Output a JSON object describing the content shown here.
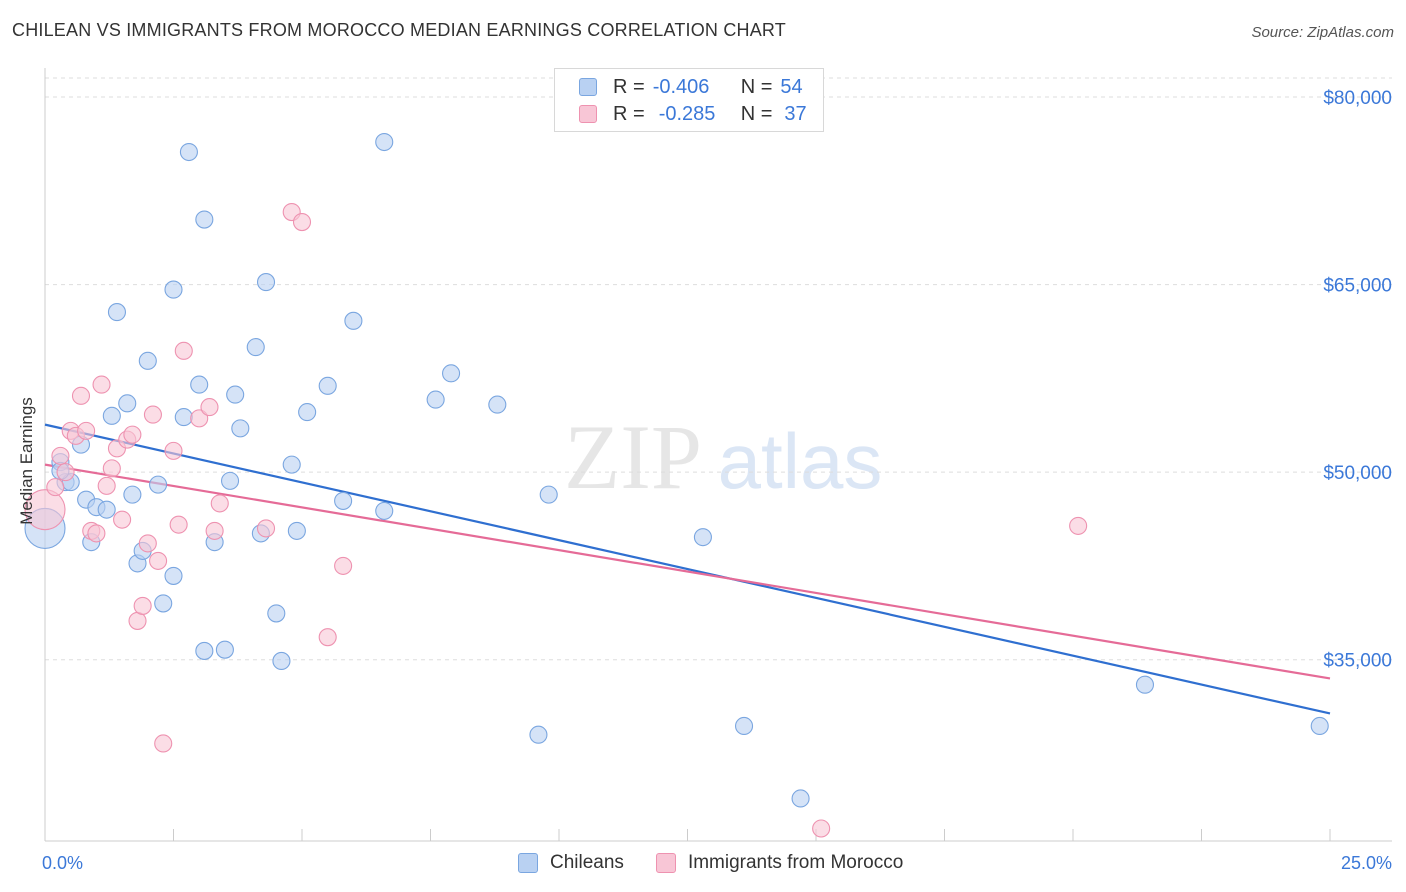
{
  "header": {
    "title": "CHILEAN VS IMMIGRANTS FROM MOROCCO MEDIAN EARNINGS CORRELATION CHART",
    "source": "Source: ZipAtlas.com"
  },
  "watermark": {
    "zip": "ZIP",
    "atlas": "atlas"
  },
  "legend": {
    "rows": [
      {
        "r_label": "R =",
        "r_value": "-0.406",
        "n_label": "N =",
        "n_value": "54"
      },
      {
        "r_label": "R =",
        "r_value": "-0.285",
        "n_label": "N =",
        "n_value": "37"
      }
    ]
  },
  "bottom_legend": {
    "items": [
      {
        "label": "Chileans"
      },
      {
        "label": "Immigrants from Morocco"
      }
    ]
  },
  "colors": {
    "chileans_fill": "#b9d1f2",
    "chileans_stroke": "#7aa6e0",
    "chileans_line": "#2f6fd0",
    "morocco_fill": "#f8c6d6",
    "morocco_stroke": "#ee92b0",
    "morocco_line": "#e56b97",
    "axis_text": "#3b78d8",
    "grid": "#dddddd"
  },
  "chart_data": {
    "type": "scatter",
    "title": "CHILEAN VS IMMIGRANTS FROM MOROCCO MEDIAN EARNINGS CORRELATION CHART",
    "xlabel": "",
    "ylabel": "Median Earnings",
    "xlim": [
      0,
      25
    ],
    "ylim": [
      20500,
      82000
    ],
    "x_tick_labels": [
      "0.0%",
      "25.0%"
    ],
    "y_ticks": [
      35000,
      50000,
      65000,
      80000
    ],
    "y_tick_labels": [
      "$35,000",
      "$50,000",
      "$65,000",
      "$80,000"
    ],
    "grid": true,
    "legend_position": "top-center",
    "series": [
      {
        "name": "Chileans",
        "points": [
          [
            0.0,
            45500,
            2
          ],
          [
            0.3,
            50800,
            1
          ],
          [
            0.4,
            49200,
            1
          ],
          [
            0.5,
            49200,
            1
          ],
          [
            0.7,
            52200,
            1
          ],
          [
            0.8,
            47800,
            1
          ],
          [
            0.9,
            44400,
            1
          ],
          [
            1.0,
            47200,
            1
          ],
          [
            1.2,
            47000,
            1
          ],
          [
            1.3,
            54500,
            1
          ],
          [
            1.4,
            62800,
            1
          ],
          [
            1.6,
            55500,
            1
          ],
          [
            1.7,
            48200,
            1
          ],
          [
            1.8,
            42700,
            1
          ],
          [
            1.9,
            43700,
            1
          ],
          [
            2.0,
            58900,
            1
          ],
          [
            2.2,
            49000,
            1
          ],
          [
            2.3,
            39500,
            1
          ],
          [
            2.5,
            41700,
            1
          ],
          [
            2.5,
            64600,
            1
          ],
          [
            2.8,
            75600,
            1
          ],
          [
            2.7,
            54400,
            1
          ],
          [
            3.0,
            57000,
            1
          ],
          [
            3.1,
            35700,
            1
          ],
          [
            3.1,
            70200,
            1
          ],
          [
            3.3,
            44400,
            1
          ],
          [
            3.5,
            35800,
            1
          ],
          [
            3.6,
            49300,
            1
          ],
          [
            3.7,
            56200,
            1
          ],
          [
            3.8,
            53500,
            1
          ],
          [
            4.1,
            60000,
            1
          ],
          [
            4.2,
            45100,
            1
          ],
          [
            4.3,
            65200,
            1
          ],
          [
            4.5,
            38700,
            1
          ],
          [
            4.6,
            34900,
            1
          ],
          [
            4.8,
            50600,
            1
          ],
          [
            4.9,
            45300,
            1
          ],
          [
            5.1,
            54800,
            1
          ],
          [
            5.5,
            56900,
            1
          ],
          [
            5.8,
            47700,
            1
          ],
          [
            6.0,
            62100,
            1
          ],
          [
            6.6,
            46900,
            1
          ],
          [
            6.6,
            76400,
            1
          ],
          [
            7.6,
            55800,
            1
          ],
          [
            7.9,
            57900,
            1
          ],
          [
            8.8,
            55400,
            1
          ],
          [
            9.6,
            29000,
            1
          ],
          [
            9.8,
            48200,
            1
          ],
          [
            12.8,
            44800,
            1
          ],
          [
            13.6,
            29700,
            1
          ],
          [
            14.7,
            23900,
            1
          ],
          [
            21.4,
            33000,
            1
          ],
          [
            24.8,
            29700,
            1
          ],
          [
            0.3,
            50100,
            1
          ]
        ]
      },
      {
        "name": "Immigrants from Morocco",
        "points": [
          [
            0.0,
            47000,
            2
          ],
          [
            0.2,
            48800,
            1
          ],
          [
            0.3,
            51300,
            1
          ],
          [
            0.4,
            50000,
            1
          ],
          [
            0.5,
            53300,
            1
          ],
          [
            0.6,
            52900,
            1
          ],
          [
            0.7,
            56100,
            1
          ],
          [
            0.8,
            53300,
            1
          ],
          [
            0.9,
            45300,
            1
          ],
          [
            1.0,
            45100,
            1
          ],
          [
            1.1,
            57000,
            1
          ],
          [
            1.2,
            48900,
            1
          ],
          [
            1.3,
            50300,
            1
          ],
          [
            1.4,
            51900,
            1
          ],
          [
            1.5,
            46200,
            1
          ],
          [
            1.6,
            52600,
            1
          ],
          [
            1.7,
            53000,
            1
          ],
          [
            1.8,
            38100,
            1
          ],
          [
            1.9,
            39300,
            1
          ],
          [
            2.0,
            44300,
            1
          ],
          [
            2.1,
            54600,
            1
          ],
          [
            2.2,
            42900,
            1
          ],
          [
            2.3,
            28300,
            1
          ],
          [
            2.5,
            51700,
            1
          ],
          [
            2.6,
            45800,
            1
          ],
          [
            2.7,
            59700,
            1
          ],
          [
            3.0,
            54300,
            1
          ],
          [
            3.2,
            55200,
            1
          ],
          [
            3.3,
            45300,
            1
          ],
          [
            3.4,
            47500,
            1
          ],
          [
            4.3,
            45500,
            1
          ],
          [
            4.8,
            70800,
            1
          ],
          [
            5.0,
            70000,
            1
          ],
          [
            5.5,
            36800,
            1
          ],
          [
            5.8,
            42500,
            1
          ],
          [
            15.1,
            21500,
            1
          ],
          [
            20.1,
            45700,
            1
          ]
        ]
      }
    ],
    "trend_lines": [
      {
        "name": "Chileans",
        "x": [
          0,
          25
        ],
        "y": [
          53800,
          30700
        ]
      },
      {
        "name": "Immigrants from Morocco",
        "x": [
          0,
          25
        ],
        "y": [
          50600,
          33500
        ]
      }
    ]
  }
}
